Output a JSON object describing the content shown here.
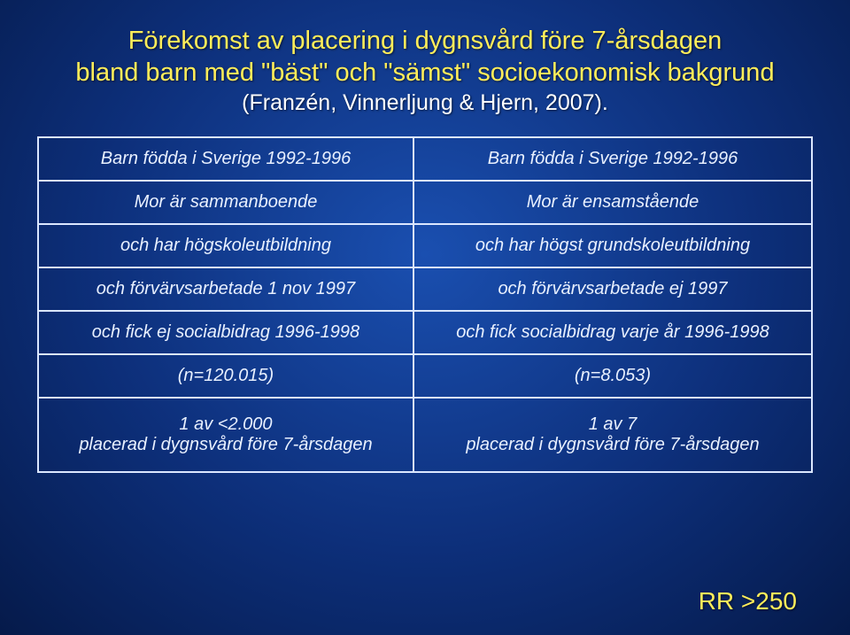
{
  "title": {
    "line1": "Förekomst av placering i dygnsvård före 7-årsdagen",
    "line2": "bland barn med \"bäst\" och \"sämst\" socioekonomisk bakgrund",
    "line3": "(Franzén, Vinnerljung & Hjern, 2007)."
  },
  "table": {
    "rows": [
      {
        "left": "Barn födda i Sverige 1992-1996",
        "right": "Barn födda i Sverige 1992-1996"
      },
      {
        "left": "Mor är sammanboende",
        "right": "Mor är ensamstående"
      },
      {
        "left": "och har högskoleutbildning",
        "right": "och har högst grundskoleutbildning"
      },
      {
        "left": "och förvärvsarbetade 1 nov 1997",
        "right": "och förvärvsarbetade ej 1997"
      },
      {
        "left": "och fick ej socialbidrag 1996-1998",
        "right": "och fick socialbidrag varje år 1996-1998"
      },
      {
        "left": "(n=120.015)",
        "right": "(n=8.053)"
      },
      {
        "left_a": "1 av <2.000",
        "left_b": "placerad i dygnsvård före 7-årsdagen",
        "right_a": "1 av 7",
        "right_b": "placerad i dygnsvård före 7-årsdagen"
      }
    ]
  },
  "rr": "RR >250",
  "colors": {
    "title_yellow": "#ffed5a",
    "title_white": "#ffffff",
    "cell_text": "#e8f0ff",
    "border": "#dbe7ff",
    "bg_center": "#1a4fb0",
    "bg_mid": "#0d2f7a",
    "bg_edge": "#051a4a"
  },
  "fonts": {
    "title_size": 29,
    "subtitle_size": 25,
    "cell_size": 20,
    "rr_size": 28
  }
}
